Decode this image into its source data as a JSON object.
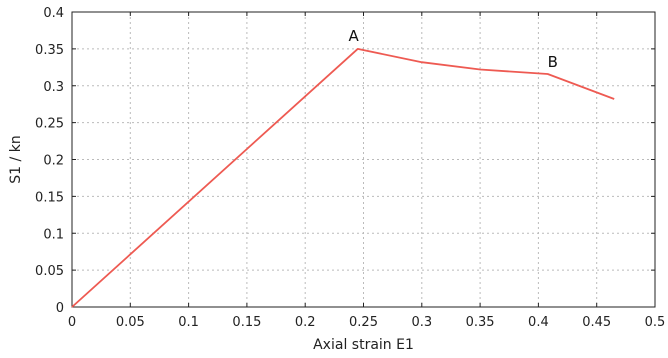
{
  "chart_data": {
    "type": "line",
    "title": "",
    "xlabel": "Axial strain E1",
    "ylabel": "S1 / kn",
    "xlim": [
      0,
      0.5
    ],
    "ylim": [
      0,
      0.4
    ],
    "x_ticks": [
      "0",
      "0.05",
      "0.1",
      "0.15",
      "0.2",
      "0.25",
      "0.3",
      "0.35",
      "0.4",
      "0.45",
      "0.5"
    ],
    "y_ticks": [
      "0",
      "0.05",
      "0.1",
      "0.15",
      "0.2",
      "0.25",
      "0.3",
      "0.35",
      "0.4"
    ],
    "grid": true,
    "series": [
      {
        "color": "#ee5a52",
        "x": [
          0,
          0.245,
          0.3,
          0.35,
          0.408,
          0.465
        ],
        "y": [
          0,
          0.35,
          0.332,
          0.322,
          0.316,
          0.282
        ]
      }
    ],
    "annotations": [
      {
        "text": "A",
        "x": 0.245,
        "y": 0.35
      },
      {
        "text": "B",
        "x": 0.408,
        "y": 0.316
      }
    ]
  }
}
